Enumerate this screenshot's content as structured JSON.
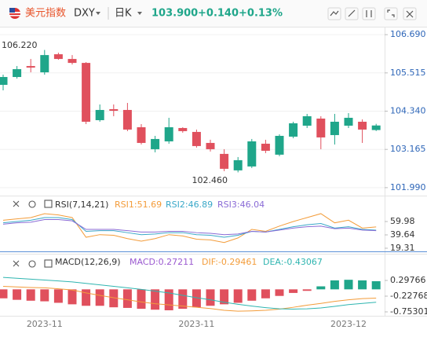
{
  "header": {
    "name": "美元指数",
    "symbol": "DXY",
    "period": "日K",
    "last": "103.900",
    "change": "+0.140",
    "change_pct": "+0.13%"
  },
  "chart_data": [
    {
      "type": "candlestick",
      "up_color": "#1fa68a",
      "down_color": "#e0505d",
      "grid": true,
      "ylim": [
        101.77,
        106.91
      ],
      "yticks": [
        {
          "value": 106.69,
          "label": "106.690"
        },
        105.515,
        {
          "value": 104.34,
          "label": "104.340"
        },
        103.165,
        {
          "value": 101.99,
          "label": "101.990"
        }
      ],
      "annotations": [
        {
          "text": "106.220"
        },
        {
          "text": "102.460"
        }
      ],
      "open": [
        105.148,
        105.389,
        105.726,
        105.533,
        106.088,
        105.943,
        105.822,
        104.063,
        104.401,
        104.377,
        103.846,
        103.171,
        103.412,
        103.822,
        103.702,
        103.364,
        103.027,
        102.521,
        102.641,
        103.34,
        103.003,
        103.557,
        103.894,
        104.112,
        103.605,
        103.894,
        104.015,
        103.76
      ],
      "high": [
        105.461,
        105.726,
        105.943,
        106.22,
        106.136,
        106.063,
        105.846,
        104.545,
        104.545,
        104.593,
        103.943,
        103.581,
        104.136,
        103.846,
        103.774,
        103.461,
        103.171,
        102.93,
        103.485,
        103.461,
        103.629,
        104.015,
        104.256,
        104.184,
        104.256,
        104.28,
        104.087,
        103.95
      ],
      "low": [
        104.979,
        105.34,
        105.533,
        105.461,
        105.919,
        105.774,
        103.943,
        104.015,
        104.184,
        103.726,
        103.316,
        103.075,
        103.34,
        103.678,
        103.22,
        103.099,
        102.497,
        102.46,
        102.593,
        103.051,
        102.955,
        103.509,
        103.822,
        103.171,
        103.316,
        103.822,
        103.364,
        103.73
      ],
      "close": [
        105.389,
        105.63,
        105.678,
        106.063,
        105.943,
        105.822,
        104.015,
        104.377,
        104.352,
        103.774,
        103.364,
        103.485,
        103.846,
        103.726,
        103.268,
        103.171,
        102.569,
        102.834,
        103.412,
        103.123,
        103.581,
        103.967,
        104.184,
        103.533,
        104.015,
        104.136,
        103.774,
        103.9
      ]
    },
    {
      "type": "line",
      "title": "RSI(7,14,21)",
      "ylim": [
        12.1,
        95.9
      ],
      "yticks": [
        59.98,
        39.64,
        19.31
      ],
      "series": [
        {
          "name": "RSI1:51.69",
          "color": "#f39c3a",
          "values": [
            62,
            64,
            66,
            72,
            70,
            66,
            36,
            40,
            39,
            34,
            30,
            34,
            40,
            38,
            33,
            32,
            28,
            35,
            48,
            45,
            53,
            60,
            66,
            72,
            58,
            62,
            50,
            51.69
          ]
        },
        {
          "name": "RSI2:46.89",
          "color": "#3aa8c8",
          "values": [
            58,
            60,
            62,
            66,
            66,
            63,
            45,
            46,
            46,
            43,
            40,
            41,
            43,
            43,
            40,
            39,
            36,
            39,
            45,
            44,
            48,
            52,
            55,
            57,
            50,
            52,
            48,
            46.89
          ]
        },
        {
          "name": "RSI3:46.04",
          "color": "#8a6bd6",
          "values": [
            56,
            58,
            59,
            63,
            63,
            61,
            48,
            48,
            48,
            46,
            44,
            44,
            45,
            45,
            43,
            42,
            40,
            41,
            45,
            44,
            47,
            50,
            52,
            53,
            49,
            50,
            47,
            46.04
          ]
        }
      ]
    },
    {
      "type": "macd",
      "title": "MACD(12,26,9)",
      "ylim": [
        -0.884,
        1.138
      ],
      "yticks": [
        0.29766,
        -0.22768,
        -0.75301
      ],
      "categories": [
        null,
        null,
        null,
        "2023-11",
        null,
        null,
        null,
        null,
        null,
        null,
        null,
        null,
        null,
        null,
        "2023-11",
        null,
        null,
        null,
        null,
        null,
        null,
        null,
        null,
        null,
        null,
        "2023-12",
        null,
        null
      ],
      "series": [
        {
          "name": "MACD:0.27211",
          "type": "bar",
          "color": "#9b59d0",
          "up_color": "#1fa68a",
          "down_color": "#e0505d",
          "values": [
            -0.3,
            -0.35,
            -0.38,
            -0.4,
            -0.45,
            -0.5,
            -0.55,
            -0.55,
            -0.6,
            -0.62,
            -0.65,
            -0.68,
            -0.7,
            -0.65,
            -0.6,
            -0.55,
            -0.5,
            -0.45,
            -0.38,
            -0.3,
            -0.22,
            -0.12,
            -0.05,
            0.1,
            0.3,
            0.32,
            0.3,
            0.27211
          ]
        },
        {
          "name": "DIF:-0.29461",
          "type": "line",
          "color": "#f39c3a",
          "values": [
            0.1,
            0.08,
            0.06,
            0.05,
            0.02,
            -0.02,
            -0.12,
            -0.2,
            -0.28,
            -0.35,
            -0.42,
            -0.48,
            -0.52,
            -0.56,
            -0.6,
            -0.64,
            -0.7,
            -0.73,
            -0.72,
            -0.7,
            -0.66,
            -0.6,
            -0.53,
            -0.47,
            -0.4,
            -0.35,
            -0.31,
            -0.29461
          ]
        },
        {
          "name": "DEA:-0.43067",
          "type": "line",
          "color": "#2fb5b0",
          "values": [
            0.4,
            0.37,
            0.34,
            0.31,
            0.28,
            0.25,
            0.2,
            0.15,
            0.1,
            0.05,
            0.0,
            -0.06,
            -0.12,
            -0.2,
            -0.28,
            -0.35,
            -0.43,
            -0.5,
            -0.56,
            -0.61,
            -0.65,
            -0.66,
            -0.65,
            -0.62,
            -0.57,
            -0.51,
            -0.47,
            -0.43067
          ]
        }
      ]
    }
  ]
}
